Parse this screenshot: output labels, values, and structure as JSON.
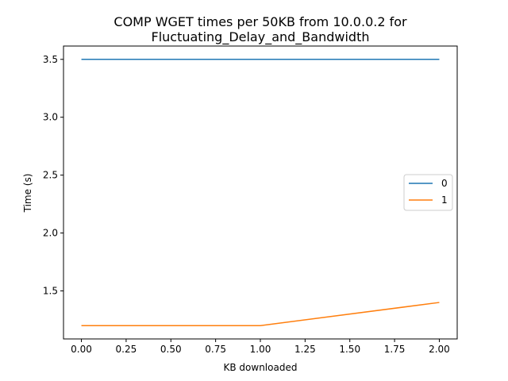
{
  "chart_data": {
    "type": "line",
    "title_line1": "COMP WGET times per 50KB from 10.0.0.2 for",
    "title_line2": "Fluctuating_Delay_and_Bandwidth",
    "xlabel": "KB downloaded",
    "ylabel": "Time (s)",
    "xlim": [
      -0.1,
      2.1
    ],
    "ylim": [
      1.085,
      3.615
    ],
    "xticks": [
      0.0,
      0.25,
      0.5,
      0.75,
      1.0,
      1.25,
      1.5,
      1.75,
      2.0
    ],
    "xtick_labels": [
      "0.00",
      "0.25",
      "0.50",
      "0.75",
      "1.00",
      "1.25",
      "1.50",
      "1.75",
      "2.00"
    ],
    "yticks": [
      1.5,
      2.0,
      2.5,
      3.0,
      3.5
    ],
    "ytick_labels": [
      "1.5",
      "2.0",
      "2.5",
      "3.0",
      "3.5"
    ],
    "legend_position": "center-right",
    "grid": false,
    "series": [
      {
        "name": "0",
        "color": "#1f77b4",
        "x": [
          0,
          1,
          2
        ],
        "y": [
          3.5,
          3.5,
          3.5
        ]
      },
      {
        "name": "1",
        "color": "#ff7f0e",
        "x": [
          0,
          1,
          2
        ],
        "y": [
          1.2,
          1.2,
          1.4
        ]
      }
    ]
  }
}
